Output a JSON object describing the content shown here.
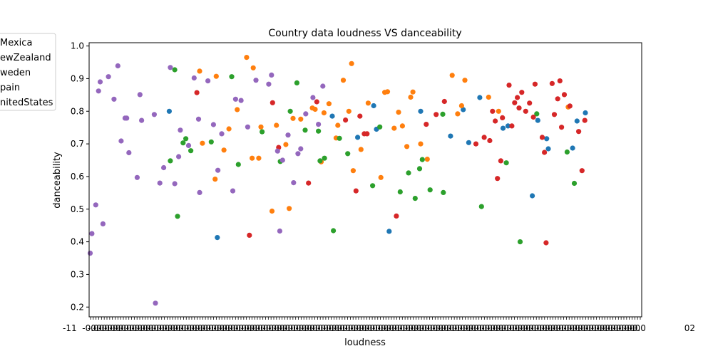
{
  "chart_data": {
    "type": "scatter",
    "title": "Country data loudness VS danceability",
    "xlabel": "loudness",
    "ylabel": "danceability",
    "ylim": [
      0.17,
      1.01
    ],
    "yticks": [
      0.2,
      0.3,
      0.4,
      0.5,
      0.6,
      0.7,
      0.8,
      0.9,
      1.0
    ],
    "x_tick_labels_visible": [
      "-11",
      "02"
    ],
    "legend": {
      "placement": "top-left outside",
      "entries": [
        {
          "label": "Mexica",
          "color": "#1f77b4"
        },
        {
          "label": "ewZealand",
          "color": "#ff7f0e"
        },
        {
          "label": "weden",
          "color": "#2ca02c"
        },
        {
          "label": "pain",
          "color": "#d62728"
        },
        {
          "label": "nitedStates",
          "color": "#9467bd"
        }
      ]
    },
    "series": [
      {
        "name": "Mexico",
        "color": "#1f77b4",
        "points": [
          [
            0.145,
            0.8
          ],
          [
            0.232,
            0.413
          ],
          [
            0.44,
            0.785
          ],
          [
            0.486,
            0.72
          ],
          [
            0.515,
            0.817
          ],
          [
            0.52,
            0.745
          ],
          [
            0.543,
            0.432
          ],
          [
            0.6,
            0.8
          ],
          [
            0.654,
            0.724
          ],
          [
            0.677,
            0.805
          ],
          [
            0.687,
            0.704
          ],
          [
            0.707,
            0.842
          ],
          [
            0.749,
            0.748
          ],
          [
            0.758,
            0.755
          ],
          [
            0.802,
            0.541
          ],
          [
            0.812,
            0.772
          ],
          [
            0.828,
            0.716
          ],
          [
            0.831,
            0.685
          ],
          [
            0.875,
            0.687
          ],
          [
            0.883,
            0.77
          ],
          [
            0.898,
            0.795
          ]
        ]
      },
      {
        "name": "NewZealand",
        "color": "#ff7f0e",
        "points": [
          [
            0.2,
            0.923
          ],
          [
            0.205,
            0.702
          ],
          [
            0.228,
            0.592
          ],
          [
            0.23,
            0.907
          ],
          [
            0.244,
            0.681
          ],
          [
            0.253,
            0.746
          ],
          [
            0.268,
            0.805
          ],
          [
            0.285,
            0.965
          ],
          [
            0.295,
            0.656
          ],
          [
            0.297,
            0.933
          ],
          [
            0.307,
            0.656
          ],
          [
            0.311,
            0.752
          ],
          [
            0.331,
            0.494
          ],
          [
            0.339,
            0.757
          ],
          [
            0.356,
            0.698
          ],
          [
            0.362,
            0.502
          ],
          [
            0.369,
            0.778
          ],
          [
            0.383,
            0.776
          ],
          [
            0.404,
            0.81
          ],
          [
            0.409,
            0.806
          ],
          [
            0.42,
            0.645
          ],
          [
            0.425,
            0.795
          ],
          [
            0.434,
            0.823
          ],
          [
            0.447,
            0.718
          ],
          [
            0.45,
            0.757
          ],
          [
            0.46,
            0.895
          ],
          [
            0.47,
            0.8
          ],
          [
            0.475,
            0.946
          ],
          [
            0.478,
            0.618
          ],
          [
            0.492,
            0.683
          ],
          [
            0.505,
            0.825
          ],
          [
            0.528,
            0.597
          ],
          [
            0.535,
            0.858
          ],
          [
            0.54,
            0.86
          ],
          [
            0.552,
            0.748
          ],
          [
            0.56,
            0.797
          ],
          [
            0.567,
            0.755
          ],
          [
            0.575,
            0.692
          ],
          [
            0.582,
            0.843
          ],
          [
            0.586,
            0.859
          ],
          [
            0.6,
            0.7
          ],
          [
            0.612,
            0.653
          ],
          [
            0.657,
            0.91
          ],
          [
            0.667,
            0.792
          ],
          [
            0.674,
            0.817
          ],
          [
            0.68,
            0.895
          ],
          [
            0.723,
            0.843
          ],
          [
            0.741,
            0.8
          ],
          [
            0.867,
            0.813
          ]
        ]
      },
      {
        "name": "Sweden",
        "color": "#2ca02c",
        "points": [
          [
            0.147,
            0.648
          ],
          [
            0.155,
            0.927
          ],
          [
            0.16,
            0.478
          ],
          [
            0.17,
            0.703
          ],
          [
            0.175,
            0.716
          ],
          [
            0.184,
            0.679
          ],
          [
            0.221,
            0.706
          ],
          [
            0.258,
            0.906
          ],
          [
            0.27,
            0.637
          ],
          [
            0.313,
            0.737
          ],
          [
            0.346,
            0.646
          ],
          [
            0.364,
            0.8
          ],
          [
            0.376,
            0.887
          ],
          [
            0.391,
            0.742
          ],
          [
            0.415,
            0.739
          ],
          [
            0.418,
            0.648
          ],
          [
            0.426,
            0.656
          ],
          [
            0.442,
            0.434
          ],
          [
            0.453,
            0.717
          ],
          [
            0.468,
            0.67
          ],
          [
            0.513,
            0.572
          ],
          [
            0.526,
            0.752
          ],
          [
            0.563,
            0.553
          ],
          [
            0.578,
            0.611
          ],
          [
            0.59,
            0.533
          ],
          [
            0.598,
            0.624
          ],
          [
            0.603,
            0.652
          ],
          [
            0.617,
            0.559
          ],
          [
            0.64,
            0.791
          ],
          [
            0.641,
            0.551
          ],
          [
            0.71,
            0.508
          ],
          [
            0.755,
            0.642
          ],
          [
            0.78,
            0.4
          ],
          [
            0.81,
            0.792
          ],
          [
            0.865,
            0.675
          ],
          [
            0.878,
            0.579
          ]
        ]
      },
      {
        "name": "Spain",
        "color": "#d62728",
        "points": [
          [
            0.195,
            0.857
          ],
          [
            0.29,
            0.42
          ],
          [
            0.332,
            0.826
          ],
          [
            0.343,
            0.689
          ],
          [
            0.397,
            0.58
          ],
          [
            0.412,
            0.829
          ],
          [
            0.464,
            0.773
          ],
          [
            0.483,
            0.556
          ],
          [
            0.49,
            0.785
          ],
          [
            0.498,
            0.731
          ],
          [
            0.503,
            0.731
          ],
          [
            0.556,
            0.479
          ],
          [
            0.61,
            0.76
          ],
          [
            0.628,
            0.79
          ],
          [
            0.643,
            0.83
          ],
          [
            0.715,
            0.72
          ],
          [
            0.725,
            0.71
          ],
          [
            0.73,
            0.8
          ],
          [
            0.735,
            0.77
          ],
          [
            0.739,
            0.594
          ],
          [
            0.745,
            0.648
          ],
          [
            0.748,
            0.78
          ],
          [
            0.76,
            0.88
          ],
          [
            0.765,
            0.755
          ],
          [
            0.77,
            0.826
          ],
          [
            0.775,
            0.842
          ],
          [
            0.778,
            0.81
          ],
          [
            0.783,
            0.858
          ],
          [
            0.79,
            0.8
          ],
          [
            0.797,
            0.825
          ],
          [
            0.804,
            0.782
          ],
          [
            0.807,
            0.883
          ],
          [
            0.82,
            0.72
          ],
          [
            0.824,
            0.674
          ],
          [
            0.827,
            0.397
          ],
          [
            0.838,
            0.885
          ],
          [
            0.842,
            0.79
          ],
          [
            0.848,
            0.838
          ],
          [
            0.852,
            0.893
          ],
          [
            0.855,
            0.751
          ],
          [
            0.86,
            0.851
          ],
          [
            0.87,
            0.816
          ],
          [
            0.886,
            0.738
          ],
          [
            0.892,
            0.618
          ],
          [
            0.897,
            0.772
          ],
          [
            0.7,
            0.7
          ]
        ]
      },
      {
        "name": "UnitedStates",
        "color": "#9467bd",
        "points": [
          [
            0.002,
            0.365
          ],
          [
            0.005,
            0.425
          ],
          [
            0.012,
            0.513
          ],
          [
            0.017,
            0.862
          ],
          [
            0.02,
            0.89
          ],
          [
            0.025,
            0.455
          ],
          [
            0.035,
            0.906
          ],
          [
            0.045,
            0.837
          ],
          [
            0.052,
            0.939
          ],
          [
            0.058,
            0.709
          ],
          [
            0.065,
            0.779
          ],
          [
            0.068,
            0.779
          ],
          [
            0.072,
            0.673
          ],
          [
            0.087,
            0.597
          ],
          [
            0.092,
            0.851
          ],
          [
            0.095,
            0.772
          ],
          [
            0.118,
            0.79
          ],
          [
            0.12,
            0.212
          ],
          [
            0.128,
            0.58
          ],
          [
            0.135,
            0.627
          ],
          [
            0.147,
            0.934
          ],
          [
            0.155,
            0.578
          ],
          [
            0.162,
            0.661
          ],
          [
            0.165,
            0.742
          ],
          [
            0.18,
            0.695
          ],
          [
            0.19,
            0.902
          ],
          [
            0.198,
            0.776
          ],
          [
            0.2,
            0.551
          ],
          [
            0.215,
            0.893
          ],
          [
            0.225,
            0.759
          ],
          [
            0.233,
            0.619
          ],
          [
            0.24,
            0.731
          ],
          [
            0.26,
            0.556
          ],
          [
            0.265,
            0.837
          ],
          [
            0.275,
            0.833
          ],
          [
            0.287,
            0.752
          ],
          [
            0.302,
            0.895
          ],
          [
            0.325,
            0.883
          ],
          [
            0.33,
            0.911
          ],
          [
            0.341,
            0.678
          ],
          [
            0.345,
            0.433
          ],
          [
            0.35,
            0.65
          ],
          [
            0.36,
            0.727
          ],
          [
            0.37,
            0.581
          ],
          [
            0.378,
            0.67
          ],
          [
            0.383,
            0.685
          ],
          [
            0.392,
            0.792
          ],
          [
            0.405,
            0.842
          ],
          [
            0.415,
            0.76
          ],
          [
            0.423,
            0.877
          ]
        ]
      }
    ]
  }
}
